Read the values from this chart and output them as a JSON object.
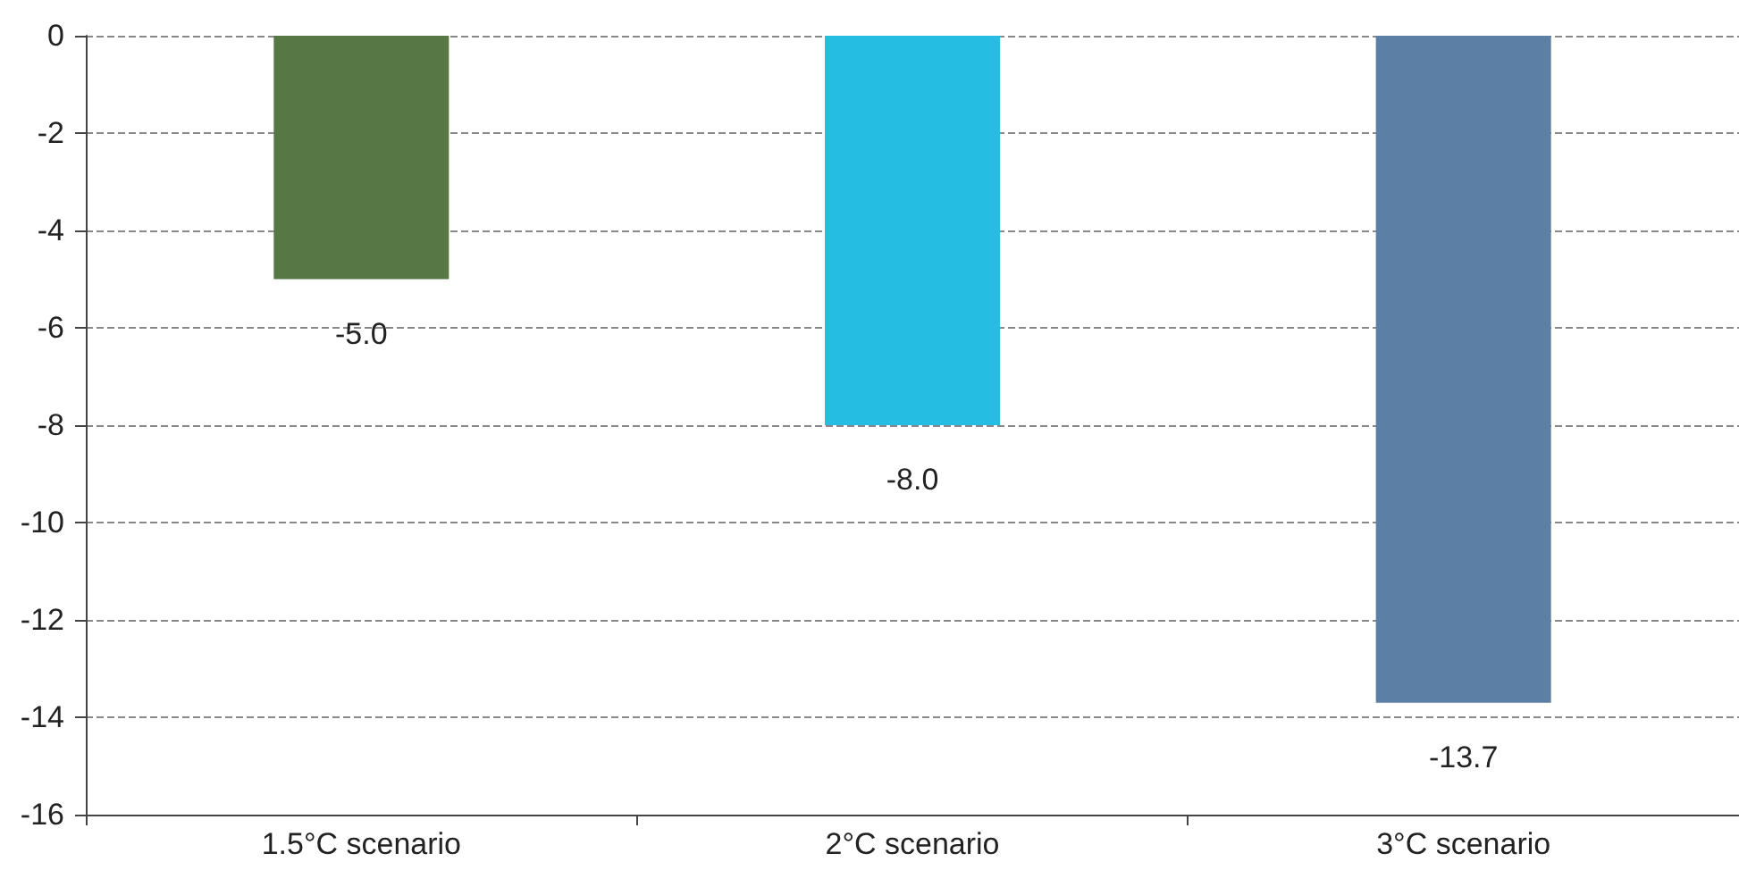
{
  "chart_data": {
    "type": "bar",
    "categories": [
      "1.5°C scenario",
      "2°C scenario",
      "3°C scenario"
    ],
    "values": [
      -5.0,
      -8.0,
      -13.7
    ],
    "colors": [
      "#577844",
      "#25bde2",
      "#5b7fa5"
    ],
    "value_labels": [
      "-5.0",
      "-8.0",
      "-13.7"
    ],
    "ylim": [
      -16,
      0
    ],
    "yticks": [
      -16,
      -14,
      -12,
      -10,
      -8,
      -6,
      -4,
      -2,
      0
    ],
    "grid": "y"
  }
}
